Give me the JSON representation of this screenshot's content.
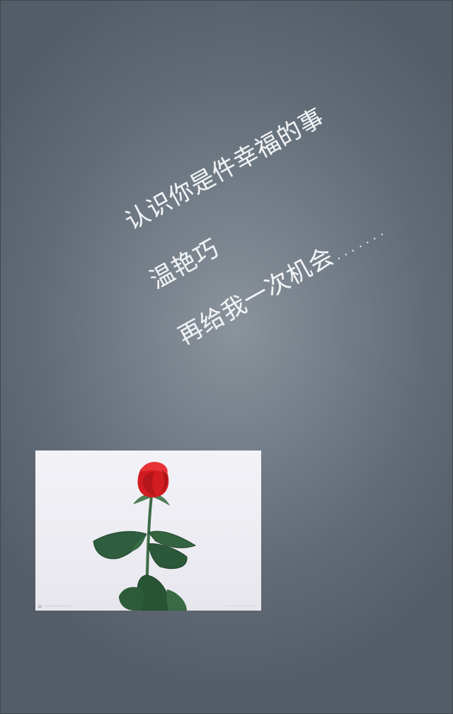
{
  "lines": [
    "认识你是件幸福的事",
    "温艳巧",
    "再给我一次机会……."
  ],
  "photo": {
    "subject": "red rose",
    "petal_color": "#d81e22",
    "leaf_color": "#2e5a3c"
  }
}
